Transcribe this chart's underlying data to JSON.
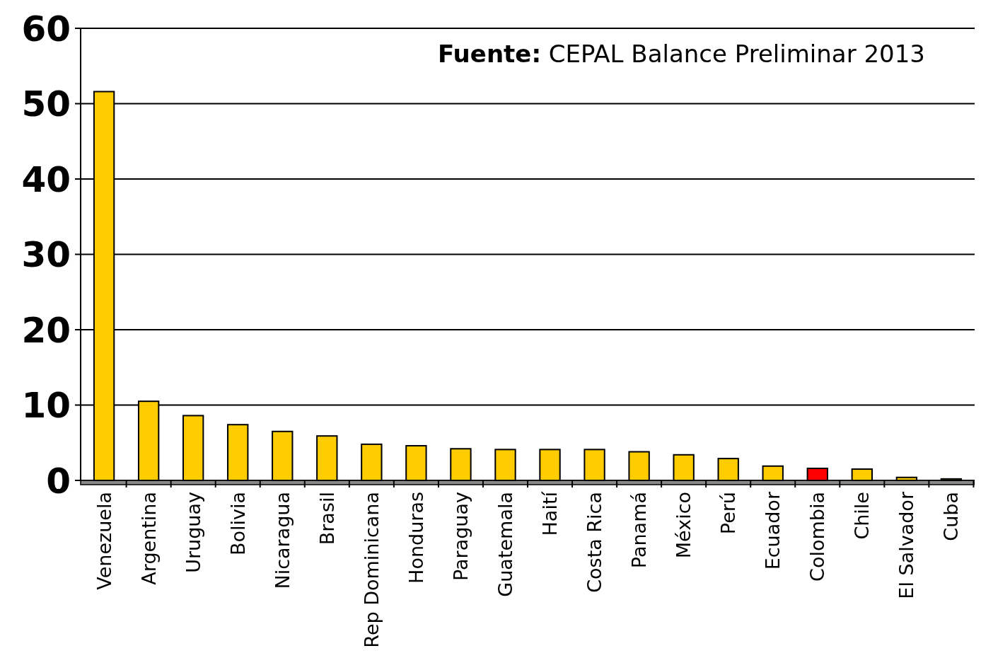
{
  "chart_data": {
    "type": "bar",
    "categories": [
      "Venezuela",
      "Argentina",
      "Uruguay",
      "Bolivia",
      "Nicaragua",
      "Brasil",
      "Rep Dominicana",
      "Honduras",
      "Paraguay",
      "Guatemala",
      "Haití",
      "Costa Rica",
      "Panamá",
      "México",
      "Perú",
      "Ecuador",
      "Colombia",
      "Chile",
      "El Salvador",
      "Cuba"
    ],
    "values": [
      51.6,
      10.5,
      8.6,
      7.4,
      6.5,
      5.9,
      4.8,
      4.6,
      4.2,
      4.1,
      4.1,
      4.1,
      3.8,
      3.4,
      2.9,
      1.9,
      1.6,
      1.5,
      0.4,
      0.2
    ],
    "colors": [
      "#ffcc00",
      "#ffcc00",
      "#ffcc00",
      "#ffcc00",
      "#ffcc00",
      "#ffcc00",
      "#ffcc00",
      "#ffcc00",
      "#ffcc00",
      "#ffcc00",
      "#ffcc00",
      "#ffcc00",
      "#ffcc00",
      "#ffcc00",
      "#ffcc00",
      "#ffcc00",
      "#ff0000",
      "#ffcc00",
      "#ffcc00",
      "#ffcc00"
    ],
    "ylim": [
      0,
      60
    ],
    "yticks": [
      0,
      10,
      20,
      30,
      40,
      50,
      60
    ],
    "grid": "y",
    "annotations": [
      "Fuente: CEPAL Balance Preliminar 2013"
    ]
  }
}
